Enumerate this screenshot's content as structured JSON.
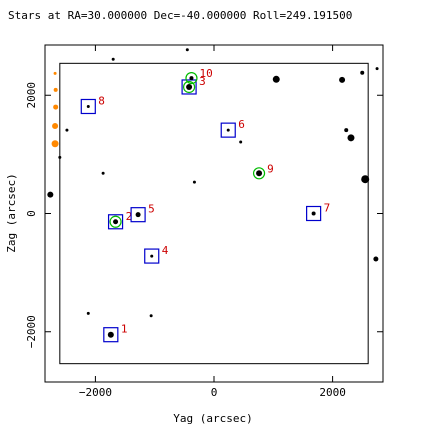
{
  "chart_data": {
    "type": "scatter",
    "title": "Stars at RA=30.000000 Dec=-40.000000 Roll=249.191500",
    "xlabel": "Yag (arcsec)",
    "ylabel": "Zag (arcsec)",
    "xlim": [
      -2850,
      2850
    ],
    "ylim": [
      -2850,
      2850
    ],
    "x_ticks": [
      -2000,
      0,
      2000
    ],
    "y_ticks": [
      -2000,
      0,
      2000
    ],
    "x_tick_labels": [
      "−2000",
      "0",
      "2000"
    ],
    "y_tick_labels": [
      "−2000",
      "0",
      "2000"
    ],
    "grid": false,
    "legend": "none",
    "colors": {
      "star": "#000000",
      "guide_box": "#0000cc",
      "acq_circle": "#00bb00",
      "label": "#cc0000",
      "bad_star": "#ff8800",
      "inner_box": "#000000"
    },
    "inner_box": {
      "x": [
        -2600,
        2600
      ],
      "y": [
        -2540,
        2540
      ]
    },
    "stars": [
      {
        "y": 2500,
        "z": 2380,
        "size": 2
      },
      {
        "y": 2750,
        "z": 2450,
        "size": 1.5
      },
      {
        "y": 2160,
        "z": 2260,
        "size": 3
      },
      {
        "y": -1700,
        "z": 2610,
        "size": 1.5
      },
      {
        "y": -450,
        "z": 2770,
        "size": 1.5
      },
      {
        "y": 1050,
        "z": 2270,
        "size": 3.5
      },
      {
        "y": -2480,
        "z": 1410,
        "size": 1.5
      },
      {
        "y": -2600,
        "z": 950,
        "size": 1.5
      },
      {
        "y": 450,
        "z": 1210,
        "size": 1.5
      },
      {
        "y": 2230,
        "z": 1410,
        "size": 2
      },
      {
        "y": 2310,
        "z": 1280,
        "size": 3.5
      },
      {
        "y": -1870,
        "z": 680,
        "size": 1.5
      },
      {
        "y": -330,
        "z": 530,
        "size": 1.5
      },
      {
        "y": 2550,
        "z": 580,
        "size": 4
      },
      {
        "y": -2760,
        "z": 320,
        "size": 3
      },
      {
        "y": -1060,
        "z": -1730,
        "size": 1.5
      },
      {
        "y": -2120,
        "z": -1690,
        "size": 1.5
      },
      {
        "y": 2730,
        "z": -770,
        "size": 2.5
      }
    ],
    "bad_stars": [
      {
        "y": -2680,
        "z": 2370,
        "size": 1.5
      },
      {
        "y": -2670,
        "z": 2090,
        "size": 2
      },
      {
        "y": -2670,
        "z": 1800,
        "size": 2.5
      },
      {
        "y": -2680,
        "z": 1480,
        "size": 3
      },
      {
        "y": -2680,
        "z": 1180,
        "size": 3.5
      }
    ],
    "catalog": [
      {
        "id": "1",
        "y": -1740,
        "z": -2050,
        "size": 3,
        "box": true,
        "circle": false
      },
      {
        "id": "2",
        "y": -1660,
        "z": -140,
        "size": 2.5,
        "box": true,
        "circle": true
      },
      {
        "id": "3",
        "y": -420,
        "z": 2140,
        "size": 3,
        "box": true,
        "circle": true
      },
      {
        "id": "4",
        "y": -1050,
        "z": -720,
        "size": 1.5,
        "box": true,
        "circle": false
      },
      {
        "id": "5",
        "y": -1280,
        "z": -20,
        "size": 2.5,
        "box": true,
        "circle": false
      },
      {
        "id": "6",
        "y": 240,
        "z": 1410,
        "size": 1.5,
        "box": true,
        "circle": false
      },
      {
        "id": "7",
        "y": 1680,
        "z": 0,
        "size": 2,
        "box": true,
        "circle": false
      },
      {
        "id": "8",
        "y": -2120,
        "z": 1810,
        "size": 1.5,
        "box": true,
        "circle": false
      },
      {
        "id": "9",
        "y": 760,
        "z": 680,
        "size": 3,
        "box": false,
        "circle": true
      },
      {
        "id": "10",
        "y": -380,
        "z": 2290,
        "size": 2,
        "box": false,
        "circle": true
      }
    ]
  }
}
